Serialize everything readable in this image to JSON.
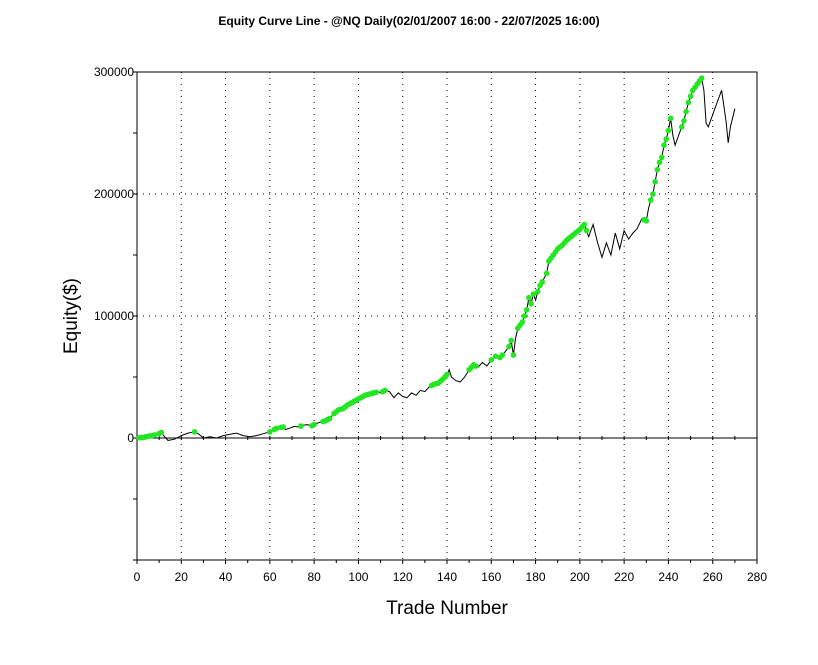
{
  "chart_data": {
    "type": "line",
    "title": "Equity Curve Line - @NQ Daily(02/01/2007 16:00 - 22/07/2025 16:00)",
    "xlabel": "Trade Number",
    "ylabel": "Equity($)",
    "xlim": [
      0,
      280
    ],
    "ylim": [
      -100000,
      300000
    ],
    "x_ticks": [
      0,
      20,
      40,
      60,
      80,
      100,
      120,
      140,
      160,
      180,
      200,
      220,
      240,
      260,
      280
    ],
    "y_ticks": [
      0,
      100000,
      200000,
      300000
    ],
    "y_tick_labels": [
      "0",
      "100000",
      "200000",
      "300000"
    ],
    "grid": true,
    "colors": {
      "line": "#000000",
      "highlight": "#22e622"
    },
    "series": [
      {
        "values": [
          [
            0,
            0
          ],
          [
            3,
            500
          ],
          [
            5,
            1500
          ],
          [
            7,
            2000
          ],
          [
            9,
            3000
          ],
          [
            11,
            4500
          ],
          [
            12,
            2000
          ],
          [
            14,
            -2000
          ],
          [
            17,
            -1000
          ],
          [
            20,
            2000
          ],
          [
            23,
            4000
          ],
          [
            26,
            5000
          ],
          [
            28,
            3000
          ],
          [
            30,
            0
          ],
          [
            33,
            1000
          ],
          [
            36,
            0
          ],
          [
            39,
            2000
          ],
          [
            42,
            3000
          ],
          [
            45,
            4000
          ],
          [
            48,
            2000
          ],
          [
            51,
            1000
          ],
          [
            54,
            2000
          ],
          [
            57,
            3500
          ],
          [
            60,
            5000
          ],
          [
            63,
            8000
          ],
          [
            66,
            9000
          ],
          [
            67,
            7000
          ],
          [
            69,
            8000
          ],
          [
            71,
            9500
          ],
          [
            73,
            9000
          ],
          [
            75,
            10500
          ],
          [
            77,
            11000
          ],
          [
            79,
            10000
          ],
          [
            81,
            12000
          ],
          [
            83,
            13000
          ],
          [
            85,
            14000
          ],
          [
            87,
            16000
          ],
          [
            89,
            20000
          ],
          [
            91,
            23000
          ],
          [
            93,
            24000
          ],
          [
            95,
            27000
          ],
          [
            97,
            29000
          ],
          [
            99,
            31000
          ],
          [
            101,
            33000
          ],
          [
            103,
            35000
          ],
          [
            105,
            36000
          ],
          [
            107,
            37000
          ],
          [
            109,
            38000
          ],
          [
            110,
            37000
          ],
          [
            112,
            39000
          ],
          [
            114,
            38000
          ],
          [
            116,
            33000
          ],
          [
            118,
            37000
          ],
          [
            120,
            34000
          ],
          [
            122,
            33000
          ],
          [
            124,
            37000
          ],
          [
            126,
            35000
          ],
          [
            128,
            39000
          ],
          [
            130,
            38000
          ],
          [
            132,
            42000
          ],
          [
            134,
            44000
          ],
          [
            136,
            45000
          ],
          [
            138,
            48000
          ],
          [
            140,
            52000
          ],
          [
            141,
            56000
          ],
          [
            142,
            50000
          ],
          [
            144,
            47000
          ],
          [
            146,
            46000
          ],
          [
            148,
            50000
          ],
          [
            150,
            56000
          ],
          [
            152,
            60000
          ],
          [
            154,
            58000
          ],
          [
            156,
            62000
          ],
          [
            158,
            59000
          ],
          [
            160,
            64000
          ],
          [
            162,
            67000
          ],
          [
            164,
            66000
          ],
          [
            166,
            70000
          ],
          [
            168,
            75000
          ],
          [
            169,
            80000
          ],
          [
            170,
            68000
          ],
          [
            171,
            82000
          ],
          [
            172,
            90000
          ],
          [
            174,
            95000
          ],
          [
            175,
            100000
          ],
          [
            176,
            105000
          ],
          [
            177,
            115000
          ],
          [
            178,
            110000
          ],
          [
            179,
            118000
          ],
          [
            180,
            113000
          ],
          [
            181,
            120000
          ],
          [
            182,
            125000
          ],
          [
            183,
            128000
          ],
          [
            185,
            135000
          ],
          [
            186,
            145000
          ],
          [
            188,
            150000
          ],
          [
            190,
            155000
          ],
          [
            192,
            158000
          ],
          [
            194,
            162000
          ],
          [
            196,
            165000
          ],
          [
            198,
            168000
          ],
          [
            200,
            171000
          ],
          [
            202,
            175000
          ],
          [
            203,
            170000
          ],
          [
            204,
            165000
          ],
          [
            206,
            175000
          ],
          [
            208,
            160000
          ],
          [
            210,
            148000
          ],
          [
            212,
            160000
          ],
          [
            214,
            150000
          ],
          [
            216,
            168000
          ],
          [
            218,
            155000
          ],
          [
            220,
            170000
          ],
          [
            222,
            163000
          ],
          [
            224,
            168000
          ],
          [
            226,
            172000
          ],
          [
            228,
            180000
          ],
          [
            230,
            178000
          ],
          [
            231,
            188000
          ],
          [
            232,
            195000
          ],
          [
            233,
            200000
          ],
          [
            234,
            210000
          ],
          [
            235,
            220000
          ],
          [
            236,
            226000
          ],
          [
            237,
            230000
          ],
          [
            238,
            240000
          ],
          [
            239,
            245000
          ],
          [
            240,
            252000
          ],
          [
            241,
            262000
          ],
          [
            242,
            248000
          ],
          [
            243,
            240000
          ],
          [
            245,
            250000
          ],
          [
            247,
            260000
          ],
          [
            249,
            275000
          ],
          [
            251,
            285000
          ],
          [
            253,
            290000
          ],
          [
            255,
            295000
          ],
          [
            256,
            285000
          ],
          [
            257,
            258000
          ],
          [
            258,
            255000
          ],
          [
            260,
            265000
          ],
          [
            262,
            275000
          ],
          [
            264,
            285000
          ],
          [
            266,
            260000
          ],
          [
            267,
            242000
          ],
          [
            268,
            255000
          ],
          [
            270,
            270000
          ]
        ],
        "highlight_x": [
          1,
          2,
          3,
          4,
          5,
          6,
          7,
          8,
          10,
          11,
          26,
          60,
          62,
          63,
          65,
          66,
          74,
          79,
          80,
          84,
          85,
          86,
          87,
          89,
          90,
          91,
          92,
          93,
          94,
          95,
          96,
          97,
          98,
          99,
          100,
          101,
          102,
          103,
          104,
          105,
          106,
          107,
          108,
          111,
          112,
          133,
          134,
          135,
          136,
          137,
          138,
          139,
          140,
          150,
          151,
          152,
          153,
          160,
          162,
          164,
          165,
          168,
          169,
          170,
          172,
          173,
          174,
          175,
          176,
          177,
          178,
          179,
          181,
          182,
          183,
          185,
          186,
          187,
          188,
          189,
          190,
          191,
          192,
          193,
          194,
          195,
          196,
          197,
          198,
          199,
          200,
          201,
          202,
          203,
          229,
          230,
          232,
          233,
          234,
          235,
          236,
          237,
          238,
          239,
          240,
          241,
          246,
          247,
          248,
          249,
          250,
          251,
          252,
          253,
          254,
          255
        ]
      }
    ]
  }
}
